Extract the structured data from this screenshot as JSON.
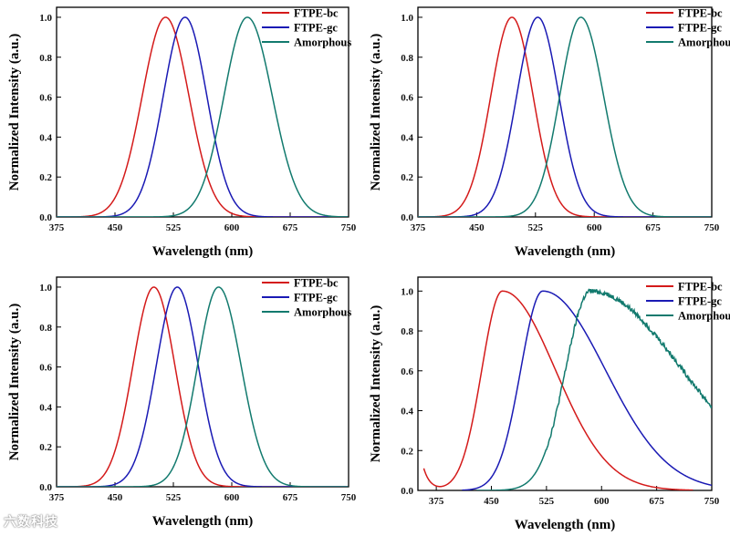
{
  "colors": {
    "FTPE-bc": "#d41a1a",
    "FTPE-gc": "#1a1ab4",
    "Amorphous": "#127a6e",
    "axis": "#000000"
  },
  "watermark": "六数科技",
  "chart_data": [
    {
      "type": "line",
      "xlabel": "Wavelength (nm)",
      "ylabel": "Normalized Intensity (a.u.)",
      "xlim": [
        375,
        750
      ],
      "ylim": [
        0,
        1.05
      ],
      "xticks": [
        375,
        450,
        525,
        600,
        675,
        750
      ],
      "yticks": [
        0.0,
        0.2,
        0.4,
        0.6,
        0.8,
        1.0
      ],
      "legend_position": "top-right",
      "series": [
        {
          "name": "FTPE-bc",
          "peak": 515,
          "width_left": 30,
          "width_right": 30
        },
        {
          "name": "FTPE-gc",
          "peak": 540,
          "width_left": 28,
          "width_right": 28
        },
        {
          "name": "Amorphous",
          "peak": 620,
          "width_left": 30,
          "width_right": 32
        }
      ]
    },
    {
      "type": "line",
      "xlabel": "Wavelength (nm)",
      "ylabel": "Normalized Intensity (a.u.)",
      "xlim": [
        375,
        750
      ],
      "ylim": [
        0,
        1.05
      ],
      "xticks": [
        375,
        450,
        525,
        600,
        675,
        750
      ],
      "yticks": [
        0.0,
        0.2,
        0.4,
        0.6,
        0.8,
        1.0
      ],
      "legend_position": "top-right",
      "series": [
        {
          "name": "FTPE-bc",
          "peak": 495,
          "width_left": 27,
          "width_right": 27
        },
        {
          "name": "FTPE-gc",
          "peak": 528,
          "width_left": 27,
          "width_right": 27
        },
        {
          "name": "Amorphous",
          "peak": 583,
          "width_left": 27,
          "width_right": 29
        }
      ]
    },
    {
      "type": "line",
      "xlabel": "Wavelength (nm)",
      "ylabel": "Normalized Intensity (a.u.)",
      "xlim": [
        375,
        750
      ],
      "ylim": [
        0,
        1.05
      ],
      "xticks": [
        375,
        450,
        525,
        600,
        675,
        750
      ],
      "yticks": [
        0.0,
        0.2,
        0.4,
        0.6,
        0.8,
        1.0
      ],
      "legend_position": "top-right",
      "series": [
        {
          "name": "FTPE-bc",
          "peak": 500,
          "width_left": 27,
          "width_right": 27
        },
        {
          "name": "FTPE-gc",
          "peak": 530,
          "width_left": 27,
          "width_right": 27
        },
        {
          "name": "Amorphous",
          "peak": 583,
          "width_left": 27,
          "width_right": 29
        }
      ]
    },
    {
      "type": "line",
      "xlabel": "Wavelength (nm)",
      "ylabel": "Normalized Intensity (a.u.)",
      "xlim": [
        350,
        750
      ],
      "ylim": [
        0,
        1.07
      ],
      "xticks": [
        375,
        450,
        525,
        600,
        675,
        750
      ],
      "yticks": [
        0.0,
        0.2,
        0.4,
        0.6,
        0.8,
        1.0
      ],
      "legend_position": "top-right",
      "series": [
        {
          "name": "FTPE-bc",
          "peak": 465,
          "width_left": 28,
          "width_right": 72,
          "x_start": 358,
          "x_end": 725,
          "uv_tail": 0.11
        },
        {
          "name": "FTPE-gc",
          "peak": 520,
          "width_left": 30,
          "width_right": 85,
          "x_start": 410,
          "x_end": 750
        },
        {
          "name": "Amorphous",
          "peak": 585,
          "width_left": 34,
          "width_right": 125,
          "x_start": 430,
          "x_end": 750,
          "noise": 0.012
        }
      ]
    }
  ]
}
